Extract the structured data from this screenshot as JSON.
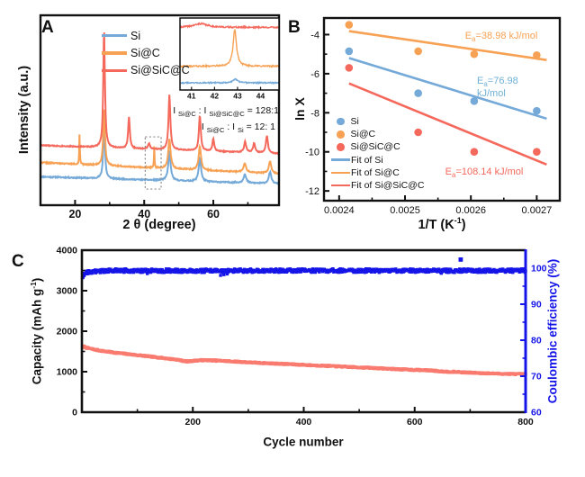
{
  "figure": {
    "background": "#ffffff"
  },
  "panels": {
    "a": {
      "label": "A"
    },
    "b": {
      "label": "B"
    },
    "c": {
      "label": "C"
    }
  },
  "chart_data": [
    {
      "id": "panel-a",
      "type": "line",
      "kind": "xrd-patterns",
      "xlabel_parts": [
        {
          "t": "2 θ (degree)"
        }
      ],
      "ylabel": "Intensity (a.u.)",
      "x_range": [
        10,
        79
      ],
      "x_ticks": [
        20,
        40,
        60
      ],
      "x_minor_ticks": [
        30,
        50,
        70
      ],
      "y_range": [
        0,
        1
      ],
      "legend": [
        "Si",
        "Si@C",
        "Si@SiC@C"
      ],
      "series": [
        {
          "name": "Si",
          "color": "#74A9D8",
          "seed": 11,
          "baseline": [
            0.15,
            0.112
          ],
          "noise": 0.006,
          "peaks": [
            [
              28.4,
              0.28,
              0.3
            ],
            [
              47.3,
              0.155,
              0.4
            ],
            [
              56.1,
              0.125,
              0.4
            ],
            [
              69.1,
              0.045,
              0.45
            ],
            [
              76.4,
              0.06,
              0.45
            ]
          ]
        },
        {
          "name": "Si@C",
          "color": "#F7A154",
          "seed": 22,
          "baseline": [
            0.225,
            0.165
          ],
          "noise": 0.006,
          "peaks": [
            [
              21.3,
              0.165,
              0.1
            ],
            [
              28.4,
              0.3,
              0.3
            ],
            [
              42.9,
              0.115,
              0.1
            ],
            [
              47.3,
              0.155,
              0.4
            ],
            [
              56.1,
              0.125,
              0.4
            ],
            [
              69.1,
              0.045,
              0.45
            ],
            [
              76.4,
              0.062,
              0.45
            ]
          ]
        },
        {
          "name": "Si@SiC@C",
          "color": "#F5685C",
          "seed": 33,
          "baseline": [
            0.315,
            0.272
          ],
          "noise": 0.005,
          "peaks": [
            [
              28.4,
              0.62,
              0.28
            ],
            [
              35.6,
              0.165,
              0.28
            ],
            [
              41.4,
              0.028,
              0.35
            ],
            [
              47.3,
              0.29,
              0.32
            ],
            [
              56.1,
              0.185,
              0.32
            ],
            [
              60.0,
              0.065,
              0.3
            ],
            [
              69.2,
              0.055,
              0.35
            ],
            [
              71.8,
              0.05,
              0.35
            ],
            [
              75.5,
              0.09,
              0.35
            ]
          ]
        }
      ],
      "highlight_box": {
        "x1": 40.3,
        "x2": 44.9,
        "y1": 0.085,
        "y2": 0.36
      },
      "inset": {
        "x_range": [
          40.5,
          44.8
        ],
        "x_ticks": [
          41,
          42,
          43,
          44
        ],
        "series": [
          {
            "name": "Si@SiC@C",
            "color": "#F5685C",
            "seed": 41,
            "base": 0.87,
            "noise": 0.02,
            "peaks": [
              [
                41.4,
                0.05,
                0.35
              ]
            ]
          },
          {
            "name": "Si@C",
            "color": "#F7A154",
            "seed": 42,
            "base": 0.33,
            "noise": 0.02,
            "peaks": [
              [
                42.88,
                0.5,
                0.09
              ]
            ]
          },
          {
            "name": "Si",
            "color": "#74A9D8",
            "seed": 43,
            "base": 0.1,
            "noise": 0.016,
            "peaks": [
              [
                42.9,
                0.05,
                0.12
              ]
            ]
          }
        ]
      },
      "annotations": [
        {
          "name": "intensity-ratio-1",
          "segments": [
            {
              "t": "I "
            },
            {
              "t": "Si@C",
              "sub": true
            },
            {
              "t": " : I "
            },
            {
              "t": "Si@SiC@C",
              "sub": true
            },
            {
              "t": " = 128:1"
            }
          ]
        },
        {
          "name": "intensity-ratio-2",
          "segments": [
            {
              "t": "I "
            },
            {
              "t": "Si@C",
              "sub": true
            },
            {
              "t": " : I "
            },
            {
              "t": "Si",
              "sub": true
            },
            {
              "t": " = 12: 1"
            }
          ]
        }
      ]
    },
    {
      "id": "panel-b",
      "type": "scatter",
      "kind": "arrhenius",
      "xlabel_parts": [
        {
          "t": "1/T (K"
        },
        {
          "t": "-1",
          "sup": true
        },
        {
          "t": ")"
        }
      ],
      "ylabel": "ln X",
      "x_range": [
        0.002377,
        0.002735
      ],
      "x_ticks": [
        {
          "v": 0.0024,
          "label": "0.0024"
        },
        {
          "v": 0.0025,
          "label": "0.0025"
        },
        {
          "v": 0.0026,
          "label": "0.0026"
        },
        {
          "v": 0.0027,
          "label": "0.0027"
        }
      ],
      "x_minor_ticks": [
        0.00245,
        0.00255,
        0.00265,
        0.00275
      ],
      "y_range": [
        -12.5,
        -3.15
      ],
      "y_ticks": [
        -4,
        -6,
        -8,
        -10,
        -12
      ],
      "y_minor_ticks": [
        -5,
        -7,
        -9,
        -11
      ],
      "x_values": [
        0.002415,
        0.00252,
        0.002605,
        0.0027
      ],
      "series": [
        {
          "name": "Si",
          "color": "#74A9D8",
          "y": [
            -4.85,
            -7.0,
            -7.4,
            -7.9
          ],
          "fit": {
            "x": [
              0.002415,
              0.002715
            ],
            "y": [
              -5.2,
              -8.3
            ]
          }
        },
        {
          "name": "Si@C",
          "color": "#F7A154",
          "y": [
            -3.5,
            -4.85,
            -5.0,
            -5.05
          ],
          "fit": {
            "x": [
              0.002415,
              0.002715
            ],
            "y": [
              -3.82,
              -5.3
            ]
          }
        },
        {
          "name": "Si@SiC@C",
          "color": "#F5685C",
          "y": [
            -5.7,
            -9.0,
            -10.0,
            -10.0
          ],
          "fit": {
            "x": [
              0.002415,
              0.002715
            ],
            "y": [
              -6.5,
              -10.65
            ]
          }
        }
      ],
      "legend": [
        "Si",
        "Si@C",
        "Si@SiC@C",
        "Fit of Si",
        "Fit of Si@C",
        "Fit of Si@SiC@C"
      ],
      "annotations": [
        {
          "name": "ea-si-at-c",
          "color": "#F7A154",
          "x": 0.002647,
          "y": -4.1,
          "segments": [
            {
              "t": "E"
            },
            {
              "t": "a",
              "sub": true
            },
            {
              "t": "=38.98 kJ/mol"
            }
          ]
        },
        {
          "name": "ea-si",
          "color": "#6FB0D6",
          "x": 0.002665,
          "y": -6.7,
          "segments": [
            {
              "t": "E"
            },
            {
              "t": "a",
              "sub": true
            },
            {
              "t": "=76.98 kJ/mol"
            }
          ]
        },
        {
          "name": "ea-si-at-sic-at-c",
          "color": "#F5685C",
          "x": 0.002618,
          "y": -11.05,
          "segments": [
            {
              "t": "E"
            },
            {
              "t": "a",
              "sub": true
            },
            {
              "t": "=108.14 kJ/mol"
            }
          ]
        }
      ]
    },
    {
      "id": "panel-c",
      "type": "scatter",
      "kind": "cycling-performance",
      "xlabel": "Cycle number",
      "x_range": [
        0,
        800
      ],
      "x_ticks": [
        200,
        400,
        600,
        800
      ],
      "x_minor_ticks": [
        100,
        300,
        500,
        700
      ],
      "left_axis": {
        "label_parts": [
          {
            "t": "Capacity (mAh g"
          },
          {
            "t": "-1",
            "sup": true
          },
          {
            "t": ")"
          }
        ],
        "range": [
          0,
          4000
        ],
        "ticks": [
          0,
          1000,
          2000,
          3000,
          4000
        ],
        "minor_ticks": [
          500,
          1500,
          2500,
          3500
        ],
        "color": "#111111"
      },
      "right_axis": {
        "label": "Coulombic efficiency (%)",
        "range": [
          60,
          105
        ],
        "ticks": [
          60,
          70,
          80,
          90,
          100
        ],
        "minor_ticks": [
          65,
          75,
          85,
          95
        ],
        "color": "#1515E8"
      },
      "capacity": {
        "name": "Capacity",
        "color": "#F97B6F",
        "seed": 7,
        "noise": 16,
        "marker": 3.4,
        "anchors": [
          [
            1,
            1630
          ],
          [
            10,
            1585
          ],
          [
            25,
            1540
          ],
          [
            40,
            1505
          ],
          [
            60,
            1470
          ],
          [
            80,
            1440
          ],
          [
            100,
            1408
          ],
          [
            115,
            1388
          ],
          [
            130,
            1362
          ],
          [
            145,
            1340
          ],
          [
            160,
            1315
          ],
          [
            172,
            1298
          ],
          [
            182,
            1268
          ],
          [
            192,
            1252
          ],
          [
            200,
            1268
          ],
          [
            212,
            1282
          ],
          [
            225,
            1284
          ],
          [
            240,
            1276
          ],
          [
            260,
            1262
          ],
          [
            280,
            1248
          ],
          [
            300,
            1232
          ],
          [
            320,
            1218
          ],
          [
            340,
            1205
          ],
          [
            360,
            1194
          ],
          [
            380,
            1182
          ],
          [
            400,
            1168
          ],
          [
            420,
            1155
          ],
          [
            440,
            1145
          ],
          [
            460,
            1132
          ],
          [
            480,
            1118
          ],
          [
            500,
            1106
          ],
          [
            520,
            1095
          ],
          [
            540,
            1082
          ],
          [
            560,
            1068
          ],
          [
            580,
            1055
          ],
          [
            600,
            1045
          ],
          [
            615,
            1038
          ],
          [
            630,
            1030
          ],
          [
            645,
            1012
          ],
          [
            658,
            1000
          ],
          [
            672,
            995
          ],
          [
            686,
            985
          ],
          [
            700,
            976
          ],
          [
            715,
            968
          ],
          [
            730,
            960
          ],
          [
            745,
            953
          ],
          [
            760,
            948
          ],
          [
            775,
            944
          ],
          [
            800,
            938
          ]
        ]
      },
      "efficiency": {
        "name": "Coulombic efficiency",
        "color": "#1515E8",
        "seed": 9,
        "noise": 0.5,
        "marker": 3.4,
        "anchors": [
          [
            1,
            97.6
          ],
          [
            4,
            98.4
          ],
          [
            8,
            98.8
          ],
          [
            15,
            99.0
          ],
          [
            30,
            99.2
          ],
          [
            60,
            99.35
          ],
          [
            120,
            99.3
          ],
          [
            250,
            99.3
          ],
          [
            400,
            99.35
          ],
          [
            600,
            99.3
          ],
          [
            800,
            99.3
          ]
        ],
        "dips": [
          [
            118,
            98.5
          ],
          [
            250,
            98.0
          ],
          [
            256,
            98.2
          ],
          [
            262,
            98.4
          ],
          [
            648,
            98.6
          ]
        ],
        "outlier": [
          683,
          102.4
        ]
      }
    }
  ]
}
